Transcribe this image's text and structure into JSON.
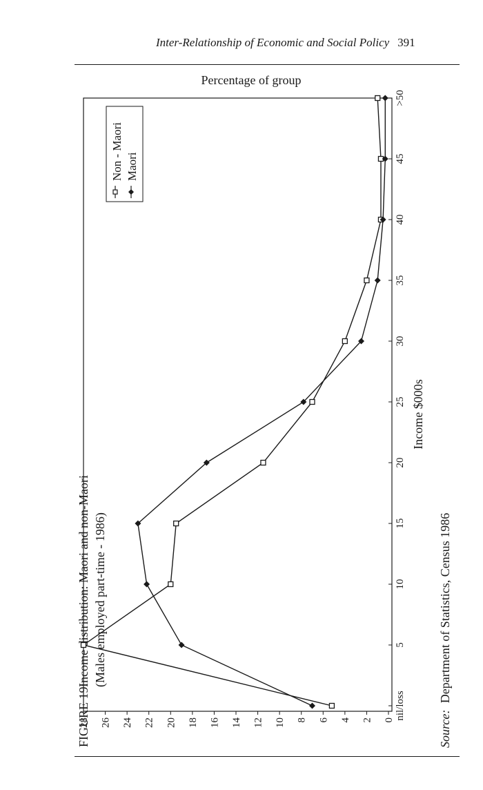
{
  "running_head": {
    "title": "Inter-Relationship of Economic and Social Policy",
    "page_number": "391"
  },
  "figure": {
    "label": "FIGURE 19:",
    "title": "Income distribution: Maori and non-Maori",
    "subtitle": "(Males employed part-time - 1986)",
    "source_label": "Source:",
    "source_text": "Department of Statistics, Census 1986"
  },
  "chart_data": {
    "type": "line",
    "title": "Income distribution: Maori and non-Maori",
    "subtitle": "(Males employed part-time - 1986)",
    "xlabel": "Income $000s",
    "ylabel": "Percentage of group",
    "categories": [
      "nil/loss",
      "5",
      "10",
      "15",
      "20",
      "25",
      "30",
      "35",
      "40",
      "45",
      ">50"
    ],
    "y_ticks": [
      0,
      2,
      4,
      6,
      8,
      10,
      12,
      14,
      16,
      18,
      20,
      22,
      24,
      26,
      28
    ],
    "ylim": [
      0,
      28
    ],
    "grid": false,
    "legend_position": "top-right",
    "orientation": "rotated 90 degrees counter-clockwise on the page",
    "series": [
      {
        "name": "Non - Maori",
        "marker": "open-square",
        "values": [
          5.2,
          28,
          20,
          19.5,
          11.5,
          7,
          4,
          2,
          0.7,
          0.7,
          1
        ]
      },
      {
        "name": "Maori",
        "marker": "filled-diamond",
        "values": [
          7,
          19,
          22.2,
          23,
          16.7,
          7.8,
          2.5,
          1,
          0.5,
          0.3,
          0.3
        ]
      }
    ]
  }
}
